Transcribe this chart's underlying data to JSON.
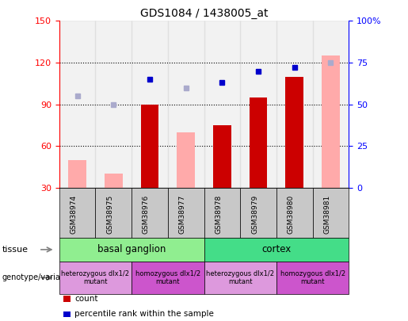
{
  "title": "GDS1084 / 1438005_at",
  "samples": [
    "GSM38974",
    "GSM38975",
    "GSM38976",
    "GSM38977",
    "GSM38978",
    "GSM38979",
    "GSM38980",
    "GSM38981"
  ],
  "count_values": [
    null,
    null,
    90,
    null,
    75,
    95,
    110,
    null
  ],
  "count_absent": [
    50,
    40,
    null,
    70,
    null,
    null,
    null,
    125
  ],
  "rank_values_pct": [
    null,
    null,
    65,
    null,
    63,
    70,
    72,
    null
  ],
  "rank_absent_pct": [
    55,
    50,
    null,
    60,
    null,
    null,
    null,
    75
  ],
  "ylim_left": [
    30,
    150
  ],
  "ylim_right": [
    0,
    100
  ],
  "yticks_left": [
    30,
    60,
    90,
    120,
    150
  ],
  "yticks_right": [
    0,
    25,
    50,
    75,
    100
  ],
  "ytick_labels_right": [
    "0",
    "25",
    "50",
    "75",
    "100%"
  ],
  "tissue_groups": [
    {
      "label": "basal ganglion",
      "samples": [
        0,
        3
      ],
      "color": "#90EE90"
    },
    {
      "label": "cortex",
      "samples": [
        4,
        7
      ],
      "color": "#44DD88"
    }
  ],
  "genotype_groups": [
    {
      "label": "heterozygous dlx1/2\nmutant",
      "samples": [
        0,
        1
      ],
      "color": "#DD99DD"
    },
    {
      "label": "homozygous dlx1/2\nmutant",
      "samples": [
        2,
        3
      ],
      "color": "#CC55CC"
    },
    {
      "label": "heterozygous dlx1/2\nmutant",
      "samples": [
        4,
        5
      ],
      "color": "#DD99DD"
    },
    {
      "label": "homozygous dlx1/2\nmutant",
      "samples": [
        6,
        7
      ],
      "color": "#CC55CC"
    }
  ],
  "color_count": "#CC0000",
  "color_count_absent": "#FFAAAA",
  "color_rank": "#0000CC",
  "color_rank_absent": "#AAAACC"
}
